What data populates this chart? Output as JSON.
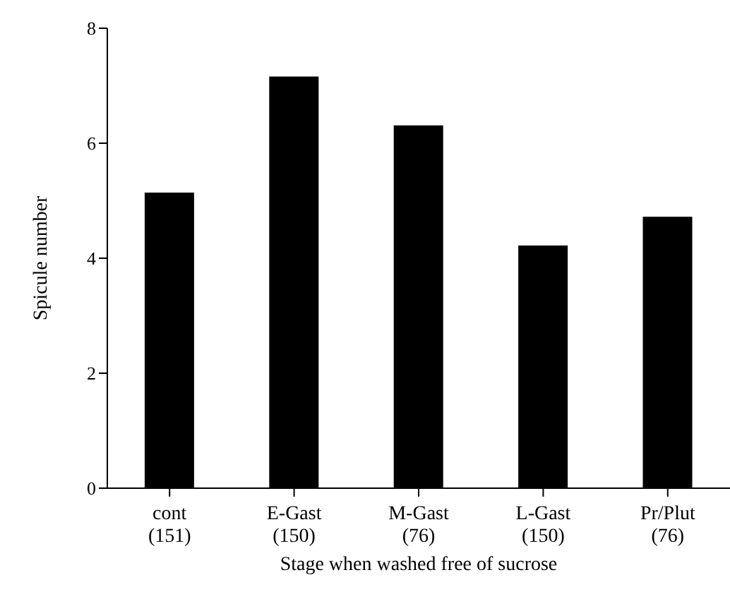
{
  "chart_data": {
    "type": "bar",
    "xlabel": "Stage when washed free of sucrose",
    "ylabel": "Spicule number",
    "categories": [
      "cont\n(151)",
      "E-Gast\n(150)",
      "M-Gast\n(76)",
      "L-Gast\n(150)",
      "Pr/Plut\n(76)"
    ],
    "values": [
      5.14,
      7.16,
      6.31,
      4.22,
      4.72
    ],
    "color": "#000000",
    "ylim": [
      0,
      8
    ],
    "yticks": [
      0,
      2,
      4,
      6,
      8
    ],
    "grid": false,
    "legend": false
  }
}
